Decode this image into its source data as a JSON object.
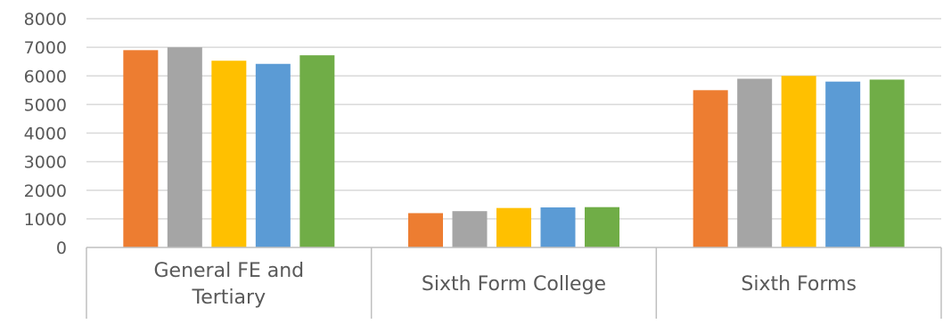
{
  "chart_data": {
    "type": "bar",
    "title": "",
    "xlabel": "",
    "ylabel": "",
    "ylim": [
      0,
      8000
    ],
    "yticks": [
      0,
      1000,
      2000,
      3000,
      4000,
      5000,
      6000,
      7000,
      8000
    ],
    "grid": true,
    "legend": "none",
    "categories": [
      [
        "General FE and",
        "Tertiary"
      ],
      [
        "Sixth Form College"
      ],
      [
        "Sixth Forms"
      ]
    ],
    "series": [
      {
        "color": "#ED7D31",
        "values": [
          6900,
          1200,
          5500
        ]
      },
      {
        "color": "#A5A5A5",
        "values": [
          7000,
          1270,
          5900
        ]
      },
      {
        "color": "#FFC000",
        "values": [
          6530,
          1380,
          6000
        ]
      },
      {
        "color": "#5B9BD5",
        "values": [
          6420,
          1400,
          5800
        ]
      },
      {
        "color": "#70AD47",
        "values": [
          6720,
          1410,
          5870
        ]
      }
    ]
  }
}
